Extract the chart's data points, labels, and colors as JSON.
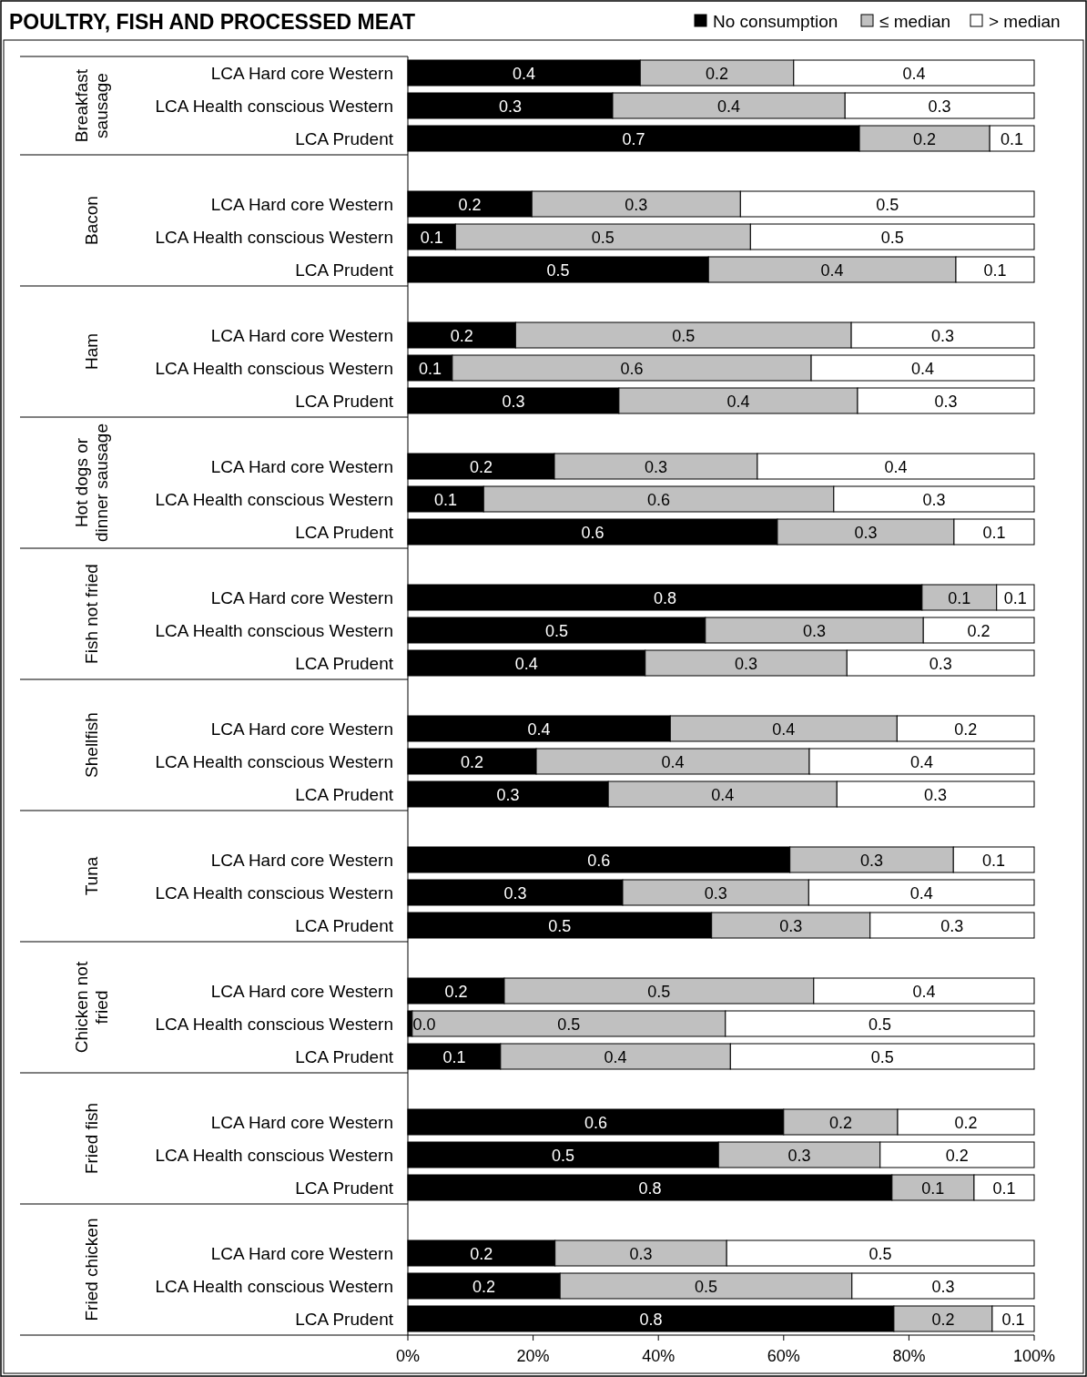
{
  "chart_data": {
    "type": "bar",
    "orientation": "horizontal",
    "stacked": true,
    "title": "POULTRY, FISH AND PROCESSED MEAT",
    "legend": "top right",
    "categories": [
      "LCA Hard core Western",
      "LCA Health conscious Western",
      "LCA Prudent",
      null,
      "LCA Hard core Western",
      "LCA Health conscious Western",
      "LCA Prudent",
      null,
      "LCA Hard core Western",
      "LCA Health conscious Western",
      "LCA Prudent",
      null,
      "LCA Hard core Western",
      "LCA Health conscious Western",
      "LCA Prudent",
      null,
      "LCA Hard core Western",
      "LCA Health conscious Western",
      "LCA Prudent",
      null,
      "LCA Hard core Western",
      "LCA Health conscious Western",
      "LCA Prudent",
      null,
      "LCA Hard core Western",
      "LCA Health conscious Western",
      "LCA Prudent",
      null,
      "LCA Hard core Western",
      "LCA Health conscious Western",
      "LCA Prudent",
      null,
      "LCA Hard core Western",
      "LCA Health conscious Western",
      "LCA Prudent",
      null,
      "LCA Hard core Western",
      "LCA Health conscious Western",
      "LCA Prudent"
    ],
    "annotations": [
      "Breakfast sausage",
      "Bacon",
      "Ham",
      "Hot dogs or dinner sausage",
      "Fish not fried",
      "Shellfish",
      "Tuna",
      "Chicken not fried",
      "Fried fish",
      "Fried chicken"
    ],
    "xlim": [
      0,
      1
    ],
    "xticks": [
      {
        "value": 0,
        "label": "0%"
      },
      {
        "value": 0.2,
        "label": "20%"
      },
      {
        "value": 0.4,
        "label": "40%"
      },
      {
        "value": 0.6,
        "label": "60%"
      },
      {
        "value": 0.8,
        "label": "80%"
      },
      {
        "value": 1,
        "label": "100%"
      }
    ],
    "series": [
      {
        "name": "No consumption",
        "color": "#000000",
        "values": [
          0.371,
          0.327,
          0.721,
          null,
          0.198,
          0.076,
          0.48,
          null,
          0.172,
          0.071,
          0.337,
          null,
          0.234,
          0.121,
          0.59,
          null,
          0.821,
          0.475,
          0.379,
          null,
          0.419,
          0.205,
          0.32,
          null,
          0.61,
          0.343,
          0.485,
          null,
          0.154,
          0.007,
          0.148,
          null,
          0.6,
          0.496,
          0.773,
          null,
          0.235,
          0.243,
          0.776
        ],
        "value_labels": [
          "0.4",
          "0.3",
          "0.7",
          null,
          "0.2",
          "0.1",
          "0.5",
          null,
          "0.2",
          "0.1",
          "0.3",
          null,
          "0.2",
          "0.1",
          "0.6",
          null,
          "0.8",
          "0.5",
          "0.4",
          null,
          "0.4",
          "0.2",
          "0.3",
          null,
          "0.6",
          "0.3",
          "0.5",
          null,
          "0.2",
          "0.0",
          "0.1",
          null,
          "0.6",
          "0.5",
          "0.8",
          null,
          "0.2",
          "0.2",
          "0.8"
        ]
      },
      {
        "name": "≤ median",
        "color": "#c0c0c0",
        "values": [
          0.245,
          0.371,
          0.208,
          null,
          0.333,
          0.471,
          0.395,
          null,
          0.536,
          0.573,
          0.381,
          null,
          0.324,
          0.559,
          0.282,
          null,
          0.119,
          0.348,
          0.322,
          null,
          0.362,
          0.436,
          0.365,
          null,
          0.261,
          0.297,
          0.253,
          null,
          0.494,
          0.5,
          0.367,
          null,
          0.182,
          0.258,
          0.131,
          null,
          0.274,
          0.466,
          0.157
        ],
        "value_labels": [
          "0.2",
          "0.4",
          "0.2",
          null,
          "0.3",
          "0.5",
          "0.4",
          null,
          "0.5",
          "0.6",
          "0.4",
          null,
          "0.3",
          "0.6",
          "0.3",
          null,
          "0.1",
          "0.3",
          "0.3",
          null,
          "0.4",
          "0.4",
          "0.4",
          null,
          "0.3",
          "0.3",
          "0.3",
          null,
          "0.5",
          "0.5",
          "0.4",
          null,
          "0.2",
          "0.3",
          "0.1",
          null,
          "0.3",
          "0.5",
          "0.2"
        ]
      },
      {
        "name": "> median",
        "color": "#ffffff",
        "values": [
          0.384,
          0.302,
          0.071,
          null,
          0.469,
          0.453,
          0.125,
          null,
          0.292,
          0.356,
          0.282,
          null,
          0.442,
          0.32,
          0.128,
          null,
          0.06,
          0.177,
          0.299,
          null,
          0.219,
          0.359,
          0.315,
          null,
          0.129,
          0.36,
          0.262,
          null,
          0.352,
          0.493,
          0.485,
          null,
          0.218,
          0.246,
          0.096,
          null,
          0.491,
          0.291,
          0.067
        ],
        "value_labels": [
          "0.4",
          "0.3",
          "0.1",
          null,
          "0.5",
          "0.5",
          "0.1",
          null,
          "0.3",
          "0.4",
          "0.3",
          null,
          "0.4",
          "0.3",
          "0.1",
          null,
          "0.1",
          "0.2",
          "0.3",
          null,
          "0.2",
          "0.4",
          "0.3",
          null,
          "0.1",
          "0.4",
          "0.3",
          null,
          "0.4",
          "0.5",
          "0.5",
          null,
          "0.2",
          "0.2",
          "0.1",
          null,
          "0.5",
          "0.3",
          "0.1"
        ]
      }
    ]
  }
}
